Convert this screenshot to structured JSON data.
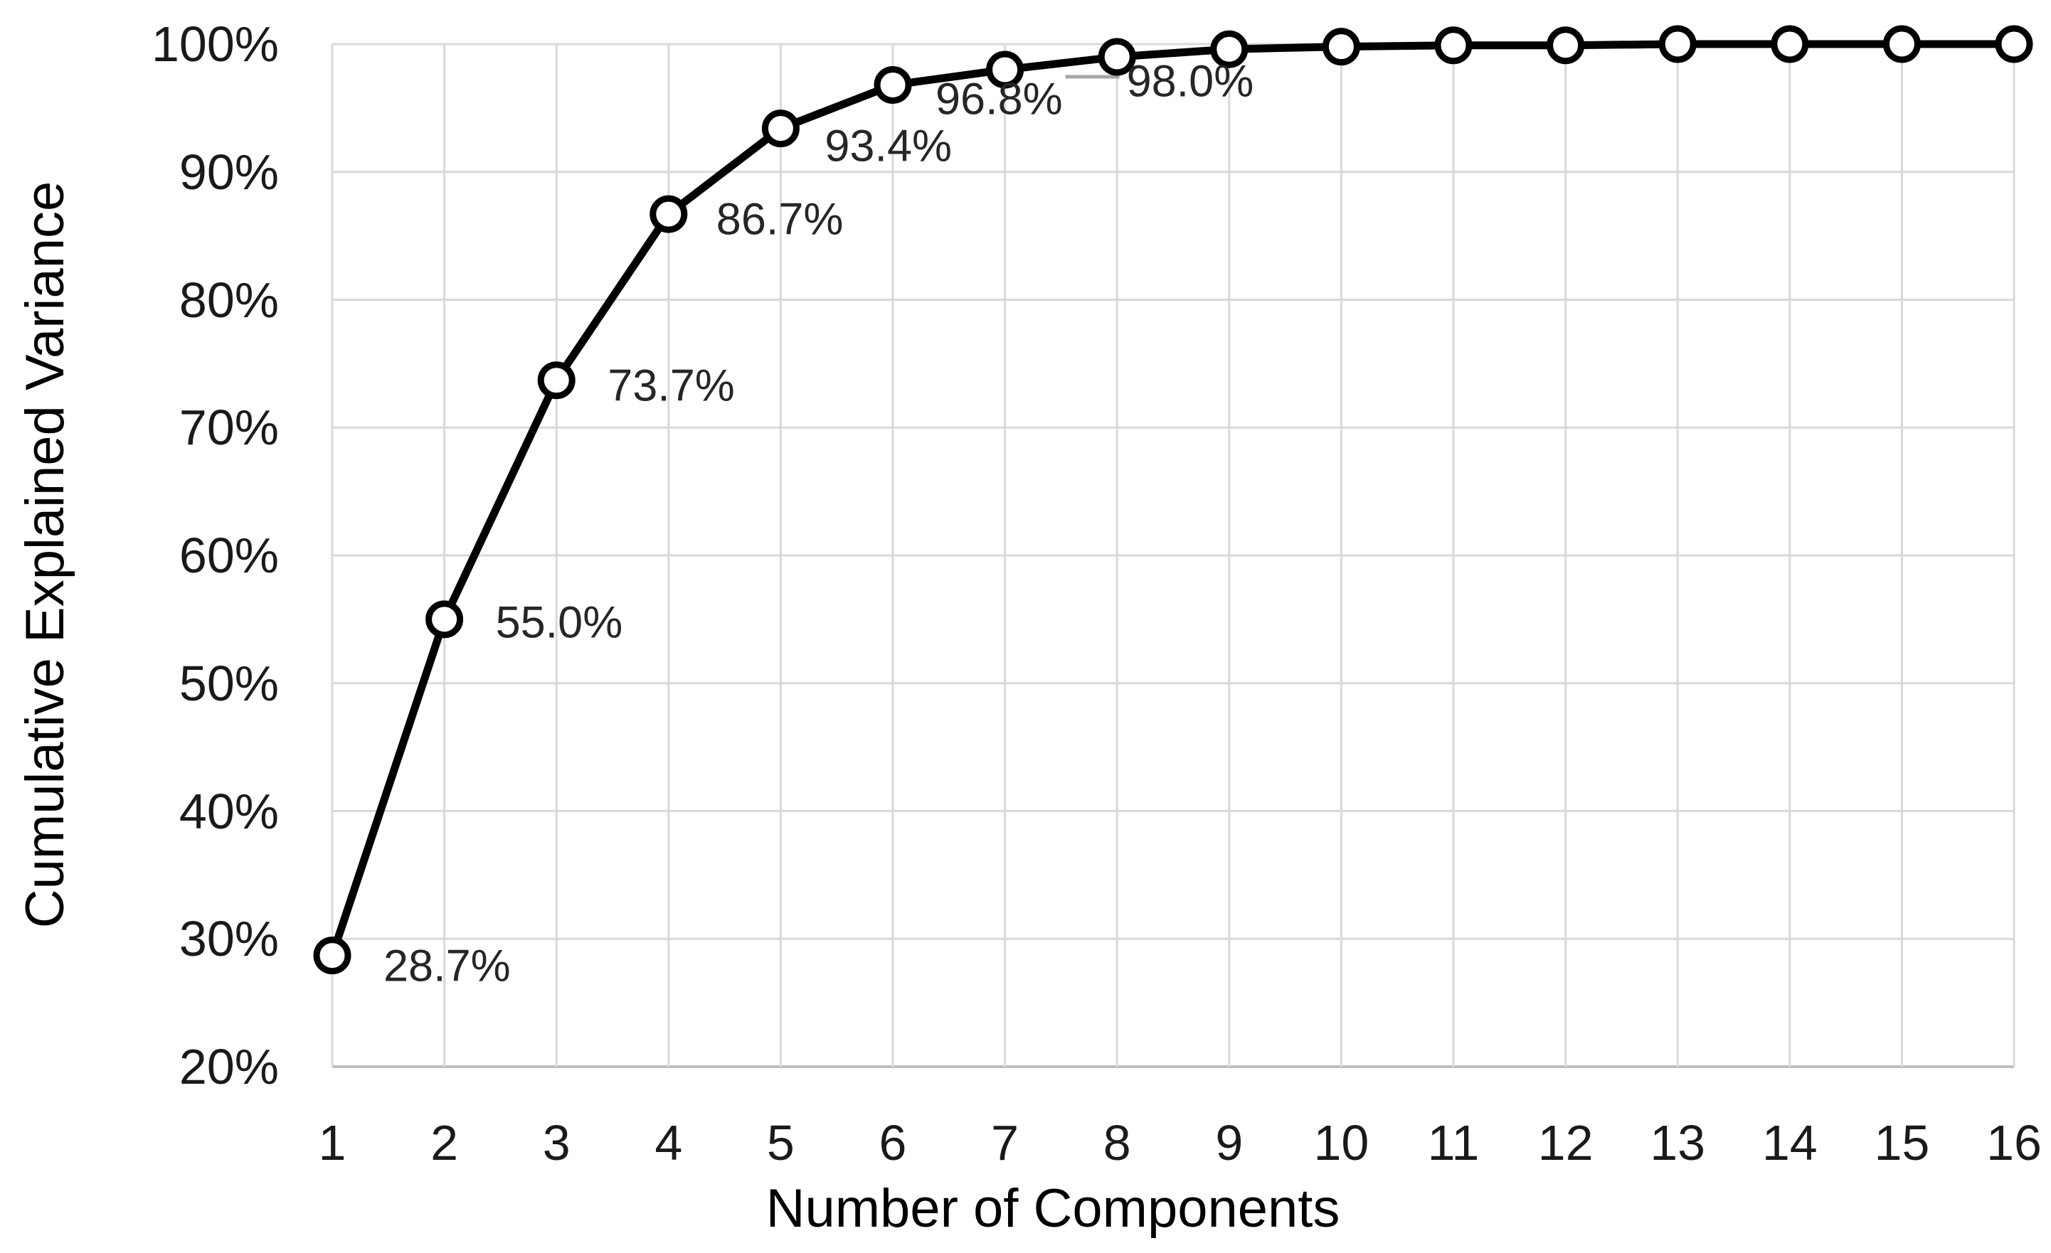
{
  "chart_data": {
    "type": "line",
    "title": "",
    "xlabel": "Number of Components",
    "ylabel": "Cumulative Explained Variance",
    "categories": [
      "1",
      "2",
      "3",
      "4",
      "5",
      "6",
      "7",
      "8",
      "9",
      "10",
      "11",
      "12",
      "13",
      "14",
      "15",
      "16"
    ],
    "series": [
      {
        "name": "Cumulative Explained Variance",
        "values": [
          28.7,
          55.0,
          73.7,
          86.7,
          93.4,
          96.8,
          98.0,
          99.0,
          99.6,
          99.8,
          99.9,
          99.9,
          100.0,
          100.0,
          100.0,
          100.0
        ]
      }
    ],
    "point_labels": [
      "28.7%",
      "55.0%",
      "73.7%",
      "86.7%",
      "93.4%",
      "96.8%",
      "98.0%",
      "",
      "",
      "",
      "",
      "",
      "",
      "",
      "",
      ""
    ],
    "yticks": [
      20,
      30,
      40,
      50,
      60,
      70,
      80,
      90,
      100
    ],
    "ytick_labels": [
      "20%",
      "30%",
      "40%",
      "50%",
      "60%",
      "70%",
      "80%",
      "90%",
      "100%"
    ],
    "ylim": [
      20,
      100
    ],
    "grid": "on",
    "legend": "none",
    "marker": "open-circle",
    "colors": {
      "line": "#000000",
      "marker_fill": "#ffffff",
      "marker_stroke": "#000000",
      "gridline": "#d9d9d9",
      "axis_line": "#bfbfbf",
      "leader_line": "#a6a6a6",
      "text": "#1a1a1a"
    }
  }
}
